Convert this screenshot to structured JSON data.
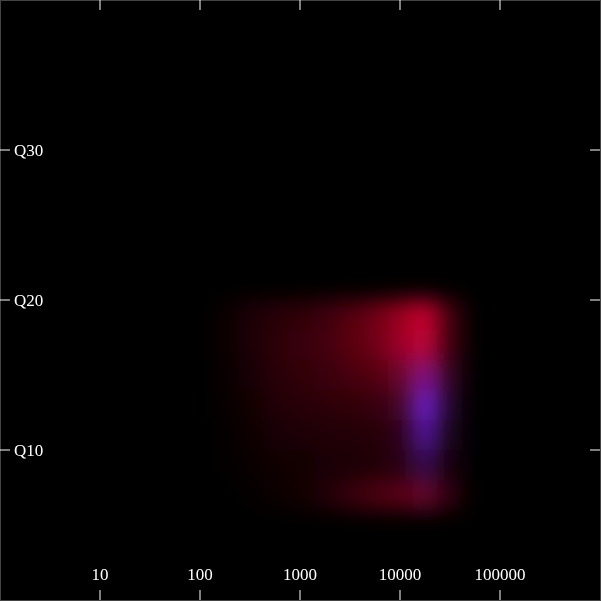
{
  "chart_data": {
    "type": "heatmap",
    "x": [
      178,
      316,
      562,
      1000,
      1778,
      3162,
      5623,
      10000,
      17783,
      31623
    ],
    "y": [
      7,
      9,
      11,
      13,
      15,
      17,
      19
    ],
    "series": [
      {
        "color": "#e0002a",
        "values": [
          [
            0,
            0.02,
            0.05,
            0.08,
            0.15,
            0.25,
            0.35,
            0.4,
            0.45,
            0.2
          ],
          [
            0.01,
            0.04,
            0.07,
            0.08,
            0.1,
            0.12,
            0.14,
            0.16,
            0.15,
            0.08
          ],
          [
            0.02,
            0.06,
            0.1,
            0.12,
            0.14,
            0.15,
            0.17,
            0.18,
            0.15,
            0.08
          ],
          [
            0.03,
            0.08,
            0.15,
            0.18,
            0.2,
            0.22,
            0.25,
            0.28,
            0.25,
            0.1
          ],
          [
            0.04,
            0.1,
            0.18,
            0.22,
            0.26,
            0.32,
            0.38,
            0.45,
            0.5,
            0.2
          ],
          [
            0.05,
            0.12,
            0.2,
            0.25,
            0.3,
            0.4,
            0.5,
            0.7,
            0.85,
            0.3
          ],
          [
            0.05,
            0.12,
            0.18,
            0.22,
            0.28,
            0.38,
            0.5,
            0.7,
            0.9,
            0.3
          ]
        ]
      },
      {
        "color": "#5a28ff",
        "values": [
          [
            0,
            0,
            0,
            0,
            0,
            0,
            0,
            0.02,
            0.1,
            0.02
          ],
          [
            0,
            0,
            0,
            0,
            0,
            0,
            0,
            0.05,
            0.3,
            0.05
          ],
          [
            0,
            0,
            0,
            0,
            0,
            0,
            0,
            0.08,
            0.6,
            0.1
          ],
          [
            0,
            0,
            0,
            0,
            0,
            0,
            0,
            0.1,
            0.8,
            0.15
          ],
          [
            0,
            0,
            0,
            0,
            0,
            0,
            0,
            0.1,
            0.5,
            0.1
          ],
          [
            0,
            0,
            0,
            0,
            0,
            0,
            0,
            0.05,
            0.1,
            0
          ],
          [
            0,
            0,
            0,
            0,
            0,
            0,
            0,
            0,
            0.05,
            0
          ]
        ]
      }
    ],
    "xlim": [
      1,
      1000000
    ],
    "ylim": [
      0,
      40
    ],
    "xticks": [
      10,
      100,
      1000,
      10000,
      100000
    ],
    "yticks": [
      {
        "value": 10,
        "label": "Q10"
      },
      {
        "value": 20,
        "label": "Q20"
      },
      {
        "value": 30,
        "label": "Q30"
      }
    ],
    "log": "x",
    "grid": false
  }
}
